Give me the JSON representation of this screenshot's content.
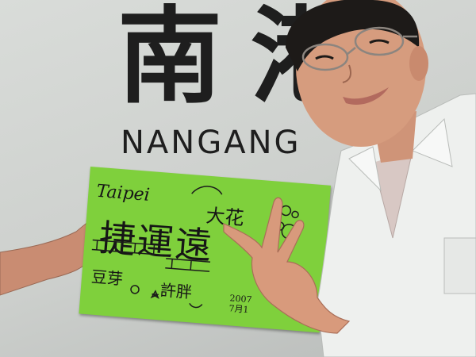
{
  "photo": {
    "station_sign": {
      "name_cjk": "南港",
      "name_en": "NANGANG"
    },
    "handmade_sign": {
      "color": "#7fd03c",
      "line_taipei": "Taipei",
      "line_dahua": "大花",
      "line_main": "捷運遠",
      "line_right": "團",
      "line_left_bottom": "豆芽",
      "line_xu": "許胖",
      "line_date": "2007\n7月1"
    }
  }
}
